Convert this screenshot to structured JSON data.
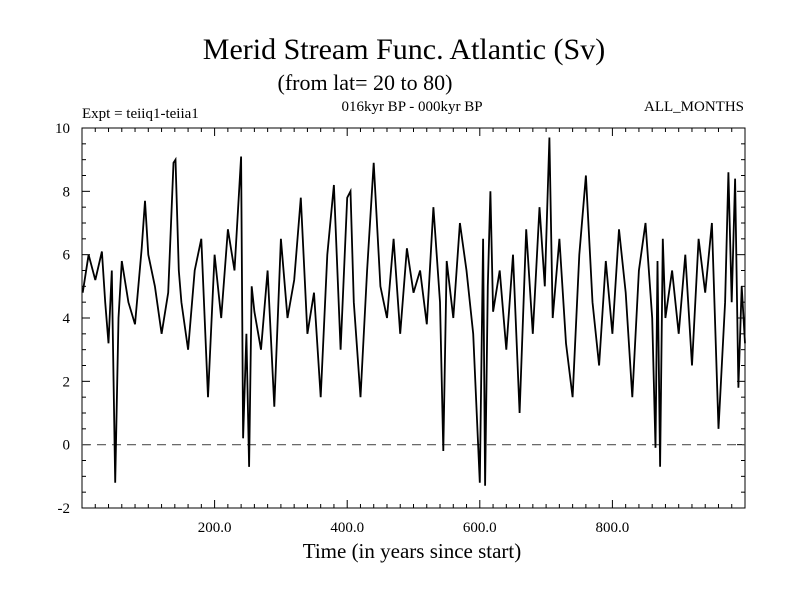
{
  "chart_data": {
    "type": "line",
    "title": "Merid Stream Func. Atlantic (Sv)",
    "subtitle": "(from lat= 20 to 80)",
    "experiment": "Expt = teiiq1-teiia1",
    "period": "016kyr BP - 000kyr BP",
    "months": "ALL_MONTHS",
    "xlabel": "Time (in years since start)",
    "ylabel": "",
    "xlim": [
      0,
      1000
    ],
    "ylim": [
      -2,
      10
    ],
    "x_ticks": [
      200,
      400,
      600,
      800
    ],
    "x_tick_labels": [
      "200.0",
      "400.0",
      "600.0",
      "800.0"
    ],
    "y_ticks": [
      -2,
      0,
      2,
      4,
      6,
      8,
      10
    ],
    "y_tick_labels": [
      "-2",
      "0",
      "2",
      "4",
      "6",
      "8",
      "10"
    ],
    "reference_line": {
      "y": 0,
      "style": "dashed"
    },
    "grid": false,
    "legend": "none",
    "colors": {
      "line": "#000000",
      "reference": "#555555"
    },
    "series": [
      {
        "x": [
          1,
          10,
          20,
          30,
          35,
          40,
          45,
          50,
          55,
          60,
          70,
          80,
          90,
          95,
          100,
          110,
          120,
          130,
          138,
          141,
          146,
          150,
          160,
          170,
          180,
          190,
          200,
          210,
          220,
          230,
          240,
          243,
          248,
          252,
          256,
          260,
          270,
          280,
          290,
          300,
          310,
          320,
          330,
          340,
          350,
          360,
          370,
          380,
          390,
          400,
          405,
          410,
          420,
          430,
          440,
          450,
          460,
          470,
          480,
          490,
          500,
          510,
          520,
          530,
          540,
          545,
          550,
          560,
          570,
          580,
          590,
          600,
          605,
          608,
          612,
          616,
          620,
          630,
          640,
          650,
          660,
          670,
          680,
          690,
          698,
          705,
          710,
          720,
          730,
          740,
          750,
          760,
          770,
          780,
          790,
          800,
          810,
          820,
          830,
          840,
          850,
          860,
          865,
          868,
          872,
          876,
          880,
          890,
          900,
          910,
          920,
          930,
          940,
          950,
          960,
          970,
          975,
          980,
          985,
          990,
          995,
          1000
        ],
        "y": [
          4.8,
          6.0,
          5.2,
          6.1,
          4.5,
          3.2,
          5.5,
          -1.2,
          4.0,
          5.8,
          4.5,
          3.8,
          6.2,
          7.7,
          6.0,
          5.0,
          3.5,
          4.8,
          8.9,
          9.0,
          5.5,
          4.5,
          3.0,
          5.5,
          6.5,
          1.5,
          6.0,
          4.0,
          6.8,
          5.5,
          9.1,
          0.2,
          3.5,
          -0.7,
          5.0,
          4.2,
          3.0,
          5.5,
          1.2,
          6.5,
          4.0,
          5.2,
          7.8,
          3.5,
          4.8,
          1.5,
          6.0,
          8.2,
          3.0,
          7.8,
          8.0,
          4.5,
          1.5,
          5.5,
          8.9,
          5.0,
          4.0,
          6.5,
          3.5,
          6.2,
          4.8,
          5.5,
          3.8,
          7.5,
          4.5,
          -0.2,
          5.8,
          4.0,
          7.0,
          5.5,
          3.5,
          -1.2,
          6.5,
          -1.3,
          5.0,
          8.0,
          4.2,
          5.5,
          3.0,
          6.0,
          1.0,
          6.8,
          3.5,
          7.5,
          5.0,
          9.7,
          4.0,
          6.5,
          3.2,
          1.5,
          6.0,
          8.5,
          4.5,
          2.5,
          5.8,
          3.5,
          6.8,
          4.8,
          1.5,
          5.5,
          7.0,
          4.0,
          -0.1,
          5.8,
          -0.7,
          6.5,
          4.0,
          5.5,
          3.5,
          6.0,
          2.5,
          6.5,
          4.8,
          7.0,
          0.5,
          4.5,
          8.6,
          4.5,
          8.4,
          1.8,
          5.0,
          3.2
        ]
      }
    ]
  }
}
